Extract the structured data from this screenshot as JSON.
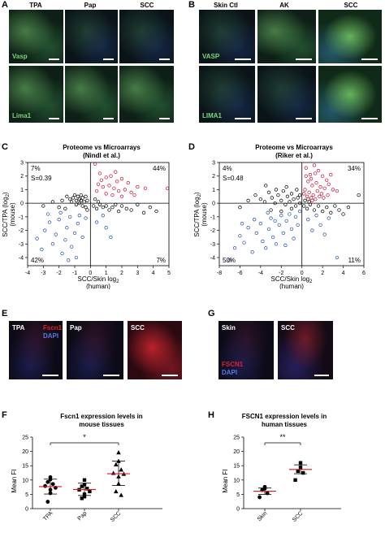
{
  "panels": {
    "A": {
      "label": "A",
      "columns": [
        "TPA",
        "Pap",
        "SCC"
      ],
      "rows": [
        "Vasp",
        "Lima1"
      ]
    },
    "B": {
      "label": "B",
      "columns": [
        "Skin Ctl",
        "AK",
        "SCC"
      ],
      "rows": [
        "VASP",
        "LIMA1"
      ]
    },
    "C": {
      "label": "C",
      "title_line1": "Proteome vs Microarrays",
      "title_line2": "(Nindl et al.)",
      "xlabel": "SCC/Skin log",
      "xlabel_sub": "2",
      "xlabel2": "(human)",
      "ylabel": "SCC/TPA (log",
      "ylabel_sub": "2",
      "ylabel_end": ")",
      "ylabel2": "(mouse)",
      "q_tl": "7%",
      "q_tr": "44%",
      "q_bl": "42%",
      "q_br": "7%",
      "s_value": "S=0.39",
      "x_ticks": [
        "-4",
        "-3",
        "-2",
        "-1",
        "0",
        "1",
        "2",
        "3",
        "4",
        "5"
      ],
      "y_ticks": [
        "3",
        "2",
        "1",
        "0",
        "-1",
        "-2",
        "-3",
        "-4"
      ]
    },
    "D": {
      "label": "D",
      "title_line1": "Proteome vs Microarrays",
      "title_line2": "(Riker et al.)",
      "xlabel": "SCC/Skin log",
      "xlabel_sub": "2",
      "xlabel2": "(human)",
      "ylabel": "SCC/TPA (log",
      "ylabel_sub": "2",
      "ylabel_end": ")",
      "ylabel2": "(mouse)",
      "q_tl": "4%",
      "q_tr": "34%",
      "q_bl": "50%",
      "q_br": "11%",
      "s_value": "S=0.48",
      "x_ticks": [
        "-8",
        "-6",
        "-4",
        "-2",
        "0",
        "2",
        "4",
        "6"
      ],
      "y_ticks": [
        "3",
        "2",
        "1",
        "0",
        "-1",
        "-2",
        "-3",
        "-4"
      ]
    },
    "E": {
      "label": "E",
      "images": [
        "TPA",
        "Pap",
        "SCC"
      ],
      "stain1": "Fscn1",
      "stain2": "DAPI"
    },
    "G": {
      "label": "G",
      "images": [
        "Skin",
        "SCC"
      ],
      "stain1": "FSCN1",
      "stain2": "DAPI"
    },
    "F": {
      "label": "F",
      "title_line1": "Fscn1 expression levels in",
      "title_line2": "mouse tissues",
      "ylabel": "Mean FI",
      "significance": "*",
      "y_ticks": [
        "25",
        "20",
        "15",
        "10",
        "5",
        "0"
      ]
    },
    "H": {
      "label": "H",
      "title_line1": "FSCN1 expression levels in",
      "title_line2": "human tissues",
      "ylabel": "Mean FI",
      "significance": "**",
      "y_ticks": [
        "25",
        "20",
        "15",
        "10",
        "5",
        "0"
      ]
    }
  },
  "colors": {
    "up": "#c8102e",
    "down": "#1f4fa8",
    "neutral": "#000000",
    "mean_line": "#d7191c",
    "vasp_label": "#7dd87a",
    "fscn_label": "#e0202a",
    "dapi_label": "#5a78e6"
  },
  "chart_data": [
    {
      "id": "C",
      "type": "scatter",
      "title": "Proteome vs Microarrays (Nindl et al.)",
      "xlabel": "SCC/Skin log2 (human)",
      "ylabel": "SCC/TPA (log2) (mouse)",
      "xlim": [
        -4,
        5
      ],
      "ylim": [
        -4.6,
        3
      ],
      "grid": false,
      "annotations": [
        "7%",
        "44%",
        "42%",
        "7%",
        "S=0.39"
      ],
      "series": [
        {
          "color": "red",
          "points": [
            [
              0.3,
              2.9
            ],
            [
              0.6,
              2.2
            ],
            [
              1.0,
              1.9
            ],
            [
              1.3,
              2.0
            ],
            [
              1.6,
              2.3
            ],
            [
              2.0,
              1.8
            ],
            [
              2.4,
              1.5
            ],
            [
              0.5,
              1.4
            ],
            [
              0.8,
              1.2
            ],
            [
              1.2,
              1.3
            ],
            [
              1.5,
              1.1
            ],
            [
              1.8,
              0.9
            ],
            [
              2.2,
              1.0
            ],
            [
              2.6,
              0.8
            ],
            [
              3.0,
              1.2
            ],
            [
              3.5,
              1.1
            ],
            [
              4.9,
              1.1
            ],
            [
              0.4,
              0.9
            ],
            [
              1.0,
              0.7
            ],
            [
              1.4,
              0.6
            ],
            [
              2.0,
              0.5
            ],
            [
              2.8,
              0.6
            ],
            [
              0.7,
              1.7
            ],
            [
              1.7,
              1.6
            ]
          ]
        },
        {
          "color": "blue",
          "points": [
            [
              -3.4,
              -2.6
            ],
            [
              -3.1,
              -3.4
            ],
            [
              -2.9,
              -2.0
            ],
            [
              -2.6,
              -1.4
            ],
            [
              -2.4,
              -3.0
            ],
            [
              -2.2,
              -2.3
            ],
            [
              -2.0,
              -1.2
            ],
            [
              -1.8,
              -3.7
            ],
            [
              -1.6,
              -2.7
            ],
            [
              -1.5,
              -1.8
            ],
            [
              -1.3,
              -1.0
            ],
            [
              -1.2,
              -3.2
            ],
            [
              -1.0,
              -2.2
            ],
            [
              -0.8,
              -1.5
            ],
            [
              -0.7,
              -0.9
            ],
            [
              -0.5,
              -2.5
            ],
            [
              -2.7,
              -0.8
            ],
            [
              -1.9,
              -0.7
            ],
            [
              -0.9,
              -4.0
            ],
            [
              -1.4,
              -4.2
            ],
            [
              0.4,
              -1.4
            ],
            [
              0.8,
              -0.9
            ],
            [
              1.0,
              -1.8
            ],
            [
              1.3,
              -2.5
            ],
            [
              -0.3,
              -1.1
            ]
          ]
        },
        {
          "color": "black",
          "points": [
            [
              -1.5,
              0.5
            ],
            [
              -1.3,
              0.3
            ],
            [
              -1.2,
              0.1
            ],
            [
              -1.1,
              0.4
            ],
            [
              -1.0,
              0.6
            ],
            [
              -0.9,
              0.2
            ],
            [
              -0.9,
              -0.1
            ],
            [
              -0.8,
              0.5
            ],
            [
              -0.7,
              0.3
            ],
            [
              -0.7,
              0.0
            ],
            [
              -0.6,
              0.6
            ],
            [
              -0.6,
              0.2
            ],
            [
              -0.5,
              -0.2
            ],
            [
              -0.5,
              0.4
            ],
            [
              -0.4,
              0.1
            ],
            [
              -0.3,
              0.5
            ],
            [
              -0.3,
              -0.3
            ],
            [
              -0.2,
              0.2
            ],
            [
              -0.2,
              -0.5
            ],
            [
              0.2,
              -0.2
            ],
            [
              0.4,
              -0.4
            ],
            [
              0.6,
              -0.1
            ],
            [
              0.8,
              -0.3
            ],
            [
              1.0,
              -0.2
            ],
            [
              1.2,
              -0.5
            ],
            [
              1.4,
              -0.3
            ],
            [
              1.6,
              -0.1
            ],
            [
              1.8,
              -0.6
            ],
            [
              2.0,
              -0.2
            ],
            [
              2.3,
              -0.4
            ],
            [
              2.6,
              -0.5
            ],
            [
              3.0,
              -0.1
            ],
            [
              3.4,
              -0.7
            ],
            [
              3.8,
              -0.3
            ],
            [
              4.2,
              -0.6
            ],
            [
              -1.8,
              0.2
            ],
            [
              -2.0,
              -0.3
            ],
            [
              -1.6,
              -0.4
            ],
            [
              -2.4,
              0.1
            ],
            [
              0.3,
              0.3
            ],
            [
              0.5,
              0.1
            ],
            [
              -3.0,
              -0.2
            ]
          ]
        }
      ]
    },
    {
      "id": "D",
      "type": "scatter",
      "title": "Proteome vs Microarrays (Riker et al.)",
      "xlabel": "SCC/Skin log2 (human)",
      "ylabel": "SCC/TPA (log2) (mouse)",
      "xlim": [
        -8,
        6
      ],
      "ylim": [
        -4.6,
        3
      ],
      "grid": false,
      "annotations": [
        "4%",
        "34%",
        "50%",
        "11%",
        "S=0.48"
      ],
      "series": [
        {
          "color": "red",
          "points": [
            [
              0.4,
              2.6
            ],
            [
              0.8,
              2.1
            ],
            [
              1.2,
              2.8
            ],
            [
              1.6,
              2.4
            ],
            [
              2.0,
              2.0
            ],
            [
              2.4,
              1.7
            ],
            [
              0.6,
              1.6
            ],
            [
              1.0,
              1.3
            ],
            [
              1.4,
              1.5
            ],
            [
              1.8,
              1.2
            ],
            [
              2.2,
              1.1
            ],
            [
              2.6,
              1.4
            ],
            [
              3.0,
              1.0
            ],
            [
              3.4,
              0.9
            ],
            [
              0.3,
              1.0
            ],
            [
              0.7,
              0.8
            ],
            [
              1.1,
              0.6
            ],
            [
              1.5,
              0.9
            ],
            [
              1.9,
              0.7
            ],
            [
              0.5,
              0.5
            ],
            [
              0.9,
              0.4
            ],
            [
              1.3,
              0.3
            ],
            [
              1.7,
              0.5
            ],
            [
              2.1,
              0.4
            ],
            [
              2.5,
              0.6
            ],
            [
              0.4,
              2.0
            ],
            [
              0.9,
              1.8
            ],
            [
              1.3,
              2.2
            ],
            [
              2.8,
              2.1
            ],
            [
              0.2,
              0.7
            ],
            [
              0.6,
              0.3
            ],
            [
              1.0,
              0.2
            ]
          ]
        },
        {
          "color": "blue",
          "points": [
            [
              -6.5,
              -3.3
            ],
            [
              -6.0,
              -2.4
            ],
            [
              -5.6,
              -2.9
            ],
            [
              -5.2,
              -1.8
            ],
            [
              -4.8,
              -3.6
            ],
            [
              -4.4,
              -2.2
            ],
            [
              -4.0,
              -1.5
            ],
            [
              -3.8,
              -2.8
            ],
            [
              -3.5,
              -3.3
            ],
            [
              -3.2,
              -1.9
            ],
            [
              -3.0,
              -1.1
            ],
            [
              -2.8,
              -2.5
            ],
            [
              -2.5,
              -3.0
            ],
            [
              -2.2,
              -1.6
            ],
            [
              -2.0,
              -0.9
            ],
            [
              -1.8,
              -2.2
            ],
            [
              -1.5,
              -1.3
            ],
            [
              -1.2,
              -0.8
            ],
            [
              -1.0,
              -1.9
            ],
            [
              -0.8,
              -2.6
            ],
            [
              -0.6,
              -1.0
            ],
            [
              -4.6,
              -1.2
            ],
            [
              -5.8,
              -1.5
            ],
            [
              -3.3,
              -0.7
            ],
            [
              -2.6,
              -1.3
            ],
            [
              -1.6,
              -3.1
            ],
            [
              -0.4,
              -1.6
            ],
            [
              0.6,
              -1.2
            ],
            [
              1.0,
              -2.0
            ],
            [
              1.4,
              -0.9
            ],
            [
              1.8,
              -1.6
            ],
            [
              2.2,
              -2.3
            ],
            [
              3.4,
              -4.0
            ],
            [
              2.6,
              -1.1
            ],
            [
              -0.2,
              -0.6
            ],
            [
              -7.0,
              -4.2
            ]
          ]
        },
        {
          "color": "black",
          "points": [
            [
              -4.5,
              0.6
            ],
            [
              -4.0,
              0.3
            ],
            [
              -3.6,
              0.1
            ],
            [
              -3.2,
              0.8
            ],
            [
              -2.9,
              0.4
            ],
            [
              -2.6,
              0.0
            ],
            [
              -2.3,
              0.6
            ],
            [
              -2.0,
              0.2
            ],
            [
              -1.8,
              0.9
            ],
            [
              -1.6,
              -0.1
            ],
            [
              -1.4,
              0.5
            ],
            [
              -1.2,
              0.1
            ],
            [
              -1.0,
              0.7
            ],
            [
              -0.8,
              0.3
            ],
            [
              -0.6,
              -0.2
            ],
            [
              -0.4,
              0.4
            ],
            [
              -0.2,
              0.0
            ],
            [
              -0.2,
              0.6
            ],
            [
              0.2,
              -0.2
            ],
            [
              0.5,
              -0.4
            ],
            [
              0.8,
              -0.1
            ],
            [
              1.2,
              -0.5
            ],
            [
              1.6,
              -0.2
            ],
            [
              2.0,
              -0.6
            ],
            [
              2.4,
              -0.3
            ],
            [
              2.8,
              -0.7
            ],
            [
              3.2,
              -0.2
            ],
            [
              3.6,
              -0.5
            ],
            [
              4.0,
              -0.8
            ],
            [
              5.5,
              0.6
            ],
            [
              -5.2,
              0.2
            ],
            [
              -6.0,
              -0.3
            ],
            [
              -3.0,
              -0.5
            ],
            [
              -2.0,
              -0.6
            ],
            [
              -1.0,
              -0.4
            ],
            [
              0.3,
              0.2
            ],
            [
              0.7,
              0.1
            ],
            [
              -0.5,
              1.0
            ],
            [
              -1.5,
              1.2
            ],
            [
              -2.5,
              1.0
            ],
            [
              -3.5,
              1.3
            ],
            [
              4.5,
              -0.3
            ]
          ]
        }
      ]
    },
    {
      "id": "F",
      "type": "scatter",
      "title": "Fscn1 expression levels in mouse tissues",
      "ylabel": "Mean FI",
      "categories": [
        "TPA",
        "Pap",
        "SCC"
      ],
      "ylim": [
        0,
        25
      ],
      "grid": false,
      "series": [
        {
          "name": "TPA",
          "marker": "circle",
          "values": [
            11.0,
            10.2,
            9.3,
            8.6,
            7.9,
            7.3,
            6.6,
            5.4,
            2.4
          ],
          "mean": 7.7,
          "error": [
            5.1,
            10.3
          ]
        },
        {
          "name": "Pap",
          "marker": "square",
          "values": [
            10.0,
            8.4,
            7.8,
            7.0,
            6.6,
            6.0,
            5.0,
            4.2,
            3.6
          ],
          "mean": 6.7,
          "error": [
            4.6,
            8.9
          ]
        },
        {
          "name": "SCC",
          "marker": "triangle",
          "values": [
            19.6,
            16.6,
            15.4,
            13.6,
            12.4,
            12.1,
            11.2,
            8.7,
            6.0,
            4.7
          ],
          "mean": 12.2,
          "error": [
            8.1,
            16.6
          ]
        }
      ]
    },
    {
      "id": "H",
      "type": "scatter",
      "title": "FSCN1 expression levels in human tissues",
      "ylabel": "Mean FI",
      "categories": [
        "Skin",
        "SCC"
      ],
      "ylim": [
        0,
        25
      ],
      "grid": false,
      "series": [
        {
          "name": "Skin",
          "marker": "circle",
          "values": [
            7.6,
            7.0,
            6.5,
            5.4,
            4.0
          ],
          "mean": 6.1,
          "error": [
            5.0,
            7.2
          ]
        },
        {
          "name": "SCC",
          "marker": "square",
          "values": [
            16.0,
            14.4,
            13.1,
            12.5,
            10.0
          ],
          "mean": 13.7,
          "error": [
            12.2,
            15.3
          ]
        }
      ]
    }
  ]
}
